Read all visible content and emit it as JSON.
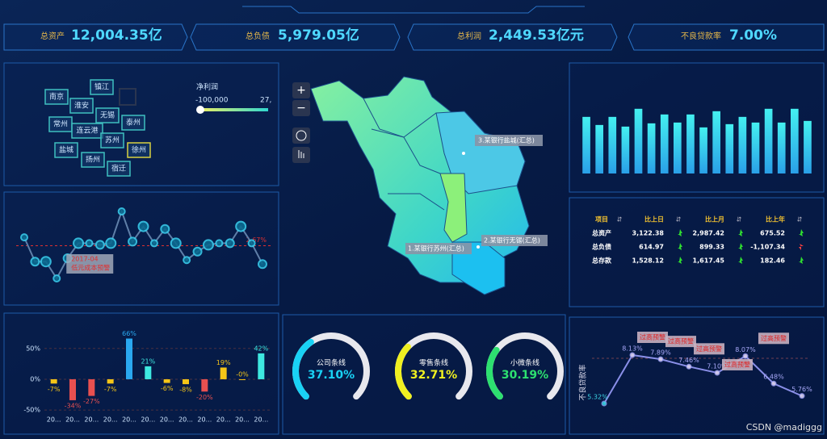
{
  "kpis": [
    {
      "label": "总资产",
      "value": "12,004.35亿"
    },
    {
      "label": "总负债",
      "value": "5,979.05亿"
    },
    {
      "label": "总利润",
      "value": "2,449.53亿元"
    },
    {
      "label": "不良贷款率",
      "value": "7.00%"
    }
  ],
  "city_grid": {
    "cities": [
      "南京",
      "镇江",
      "淮安",
      "无锡",
      "泰州",
      "常州",
      "连云港",
      "苏州",
      "盐城",
      "扬州",
      "宿迁",
      "徐州"
    ],
    "legend_title": "净利润",
    "legend_min": "-100,000",
    "legend_max": "27,"
  },
  "map": {
    "labels": [
      "3.某银行盐城(汇总)",
      "2.某银行无锡(汇总)",
      "1.某银行苏州(汇总)"
    ],
    "zoom_in": "+",
    "zoom_out": "−"
  },
  "chart_data": [
    {
      "type": "line",
      "color": "#5f7fa8",
      "values": [
        3.24,
        1.59,
        1.59,
        0.45,
        1.82,
        2.84,
        2.84,
        2.73,
        2.84,
        5.0,
        2.95,
        3.98,
        2.84,
        3.81,
        2.84,
        1.7,
        2.27,
        2.73,
        2.84,
        2.84,
        3.98,
        2.84,
        1.42
      ],
      "markline": {
        "value": 2.67,
        "label": "2.67%"
      },
      "annotation": [
        "2017-04",
        "低元成本预警"
      ]
    },
    {
      "type": "bar",
      "color": "#3ee0f0",
      "values": [
        70,
        60,
        70,
        58,
        80,
        62,
        73,
        63,
        73,
        57,
        77,
        61,
        70,
        63,
        80,
        63,
        80,
        65
      ]
    },
    {
      "type": "bar",
      "categories": [
        "20...",
        "20...",
        "20...",
        "20...",
        "20...",
        "20...",
        "20...",
        "20...",
        "20...",
        "20...",
        "20...",
        "20..."
      ],
      "values": [
        -7,
        -34,
        -27,
        -7,
        66,
        21,
        -6,
        -8,
        -20,
        19,
        0,
        42
      ],
      "value_labels": [
        "-7%",
        "-34%",
        "-27%",
        "-7%",
        "66%",
        "21%",
        "-6%",
        "-8%",
        "-20%",
        "19%",
        "-0%",
        "42%"
      ],
      "colors": [
        "#f5c518",
        "#e85050",
        "#e85050",
        "#f5c518",
        "#2aa8f0",
        "#3ee8e0",
        "#f5c518",
        "#f5c518",
        "#e85050",
        "#f5c518",
        "#f5c518",
        "#3ee8e0"
      ],
      "ylim": [
        -55,
        85
      ],
      "yticks": [
        {
          "value": 50,
          "label": "50%"
        },
        {
          "value": 0,
          "label": "0%"
        },
        {
          "value": -50,
          "label": "-50%"
        }
      ]
    },
    {
      "type": "gauge",
      "ylim": [
        0,
        100
      ],
      "series": [
        {
          "name": "公司条线",
          "color": "#19d2f5",
          "values": [
            37.1
          ],
          "value_labels": [
            "37.10%"
          ]
        },
        {
          "name": "零售条线",
          "color": "#f0f020",
          "values": [
            32.71
          ],
          "value_labels": [
            "32.71%"
          ]
        },
        {
          "name": "小微条线",
          "color": "#2de070",
          "values": [
            30.19
          ],
          "value_labels": [
            "30.19%"
          ]
        }
      ]
    },
    {
      "type": "line",
      "color": "#8a8fe8",
      "y_label": "不良贷款率",
      "values": [
        5.32,
        8.13,
        7.89,
        7.46,
        7.1,
        8.07,
        6.48,
        5.76
      ],
      "value_labels": [
        "5.32%",
        "8.13%",
        "7.89%",
        "7.46%",
        "7.10%",
        "8.07%",
        "6.48%",
        "5.76%"
      ],
      "annotations": [
        "过高预警",
        "过高预警",
        "过高预警",
        "过高预警",
        "过高预警"
      ]
    }
  ],
  "table": {
    "header": [
      "项目",
      "比上日",
      "比上月",
      "比上年"
    ],
    "rows": [
      [
        "总资产",
        "3,122.38",
        "2,987.42",
        "675.52"
      ],
      [
        "总负债",
        "614.97",
        "899.33",
        "-1,107.34"
      ],
      [
        "总存款",
        "1,528.12",
        "1,617.45",
        "182.46"
      ]
    ]
  },
  "watermark": "CSDN @madiggg"
}
